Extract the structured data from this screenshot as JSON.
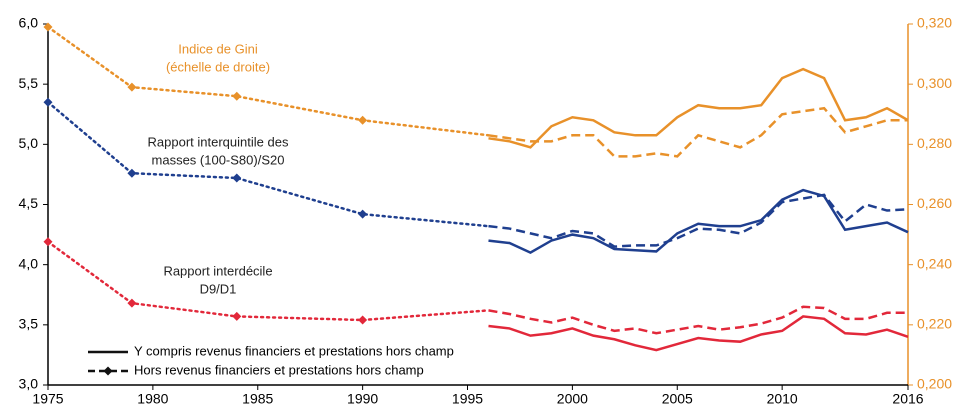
{
  "chart_data": {
    "type": "line",
    "x": [
      1975,
      1979,
      1984,
      1990,
      1996,
      1997,
      1998,
      1999,
      2000,
      2001,
      2002,
      2003,
      2004,
      2005,
      2006,
      2007,
      2008,
      2009,
      2010,
      2011,
      2012,
      2013,
      2014,
      2015,
      2016
    ],
    "xlim": [
      1975,
      2016
    ],
    "xticks": [
      1975,
      1980,
      1985,
      1990,
      1995,
      2000,
      2005,
      2010,
      2016
    ],
    "ylim": [
      3,
      6
    ],
    "yticks": [
      {
        "value": 3,
        "label": "3,0"
      },
      {
        "value": 3.5,
        "label": "3,5"
      },
      {
        "value": 4,
        "label": "4,0"
      },
      {
        "value": 4.5,
        "label": "4,5"
      },
      {
        "value": 5,
        "label": "5,0"
      },
      {
        "value": 5.5,
        "label": "5,5"
      },
      {
        "value": 6,
        "label": "6,0"
      }
    ],
    "y2lim": [
      0.2,
      0.32
    ],
    "y2ticks": [
      {
        "value": 0.2,
        "label": "0,200"
      },
      {
        "value": 0.22,
        "label": "0,220"
      },
      {
        "value": 0.24,
        "label": "0,240"
      },
      {
        "value": 0.26,
        "label": "0,260"
      },
      {
        "value": 0.28,
        "label": "0,280"
      },
      {
        "value": 0.3,
        "label": "0,300"
      },
      {
        "value": 0.32,
        "label": "0,320"
      }
    ],
    "y2_color": "#e8912a",
    "grid": false,
    "dotted_before": 1996,
    "legend": [
      "Y compris revenus financiers et prestations hors champ",
      "Hors revenus financiers et prestations hors champ"
    ],
    "indicators": [
      {
        "label": "Indice de Gini",
        "sublabel": "(échelle de droite)",
        "axis": "y2",
        "color": "#e8912a",
        "with": [
          null,
          null,
          null,
          null,
          0.282,
          0.281,
          0.279,
          0.286,
          0.289,
          0.288,
          0.284,
          0.283,
          0.283,
          0.289,
          0.293,
          0.292,
          0.292,
          0.293,
          0.302,
          0.305,
          0.302,
          0.288,
          0.289,
          0.292,
          0.288
        ],
        "without": [
          0.319,
          0.299,
          0.296,
          0.288,
          0.283,
          0.282,
          0.281,
          0.281,
          0.283,
          0.283,
          0.276,
          0.276,
          0.277,
          0.276,
          0.283,
          0.281,
          0.279,
          0.283,
          0.29,
          0.291,
          0.292,
          0.284,
          0.286,
          0.288,
          0.288
        ]
      },
      {
        "label": "Rapport interquintile des",
        "sublabel": "masses (100-S80)/S20",
        "axis": "y",
        "color": "#1f3f8f",
        "with": [
          null,
          null,
          null,
          null,
          4.2,
          4.18,
          4.1,
          4.2,
          4.25,
          4.22,
          4.13,
          4.12,
          4.11,
          4.26,
          4.34,
          4.32,
          4.32,
          4.37,
          4.54,
          4.62,
          4.57,
          4.29,
          4.32,
          4.35,
          4.27
        ],
        "without": [
          5.35,
          4.76,
          4.72,
          4.42,
          4.32,
          4.3,
          4.26,
          4.22,
          4.28,
          4.26,
          4.15,
          4.16,
          4.16,
          4.22,
          4.3,
          4.29,
          4.26,
          4.35,
          4.52,
          4.55,
          4.58,
          4.36,
          4.5,
          4.45,
          4.46
        ]
      },
      {
        "label": "Rapport interdécile",
        "sublabel": "D9/D1",
        "axis": "y",
        "color": "#e2283a",
        "with": [
          null,
          null,
          null,
          null,
          3.49,
          3.47,
          3.41,
          3.43,
          3.47,
          3.41,
          3.38,
          3.33,
          3.29,
          3.34,
          3.39,
          3.37,
          3.36,
          3.42,
          3.45,
          3.57,
          3.55,
          3.43,
          3.42,
          3.46,
          3.4
        ],
        "without": [
          4.19,
          3.68,
          3.57,
          3.54,
          3.62,
          3.59,
          3.55,
          3.52,
          3.56,
          3.5,
          3.45,
          3.47,
          3.43,
          3.46,
          3.49,
          3.46,
          3.48,
          3.51,
          3.56,
          3.65,
          3.64,
          3.55,
          3.55,
          3.6,
          3.6
        ]
      }
    ]
  }
}
